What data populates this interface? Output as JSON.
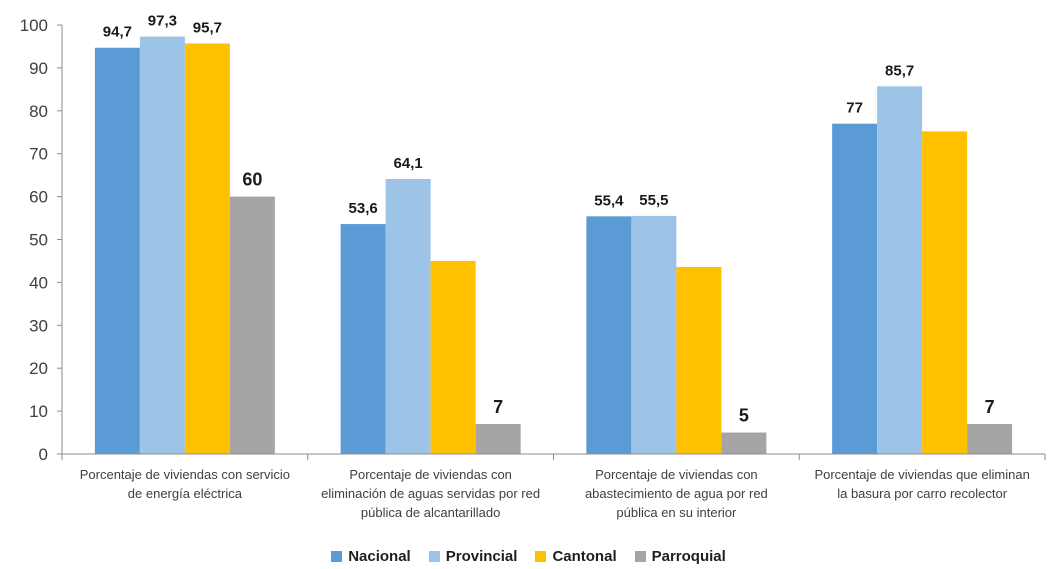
{
  "chart_data": {
    "type": "bar",
    "title": "",
    "xlabel": "",
    "ylabel": "",
    "ylim": [
      0,
      100
    ],
    "yticks": [
      0,
      10,
      20,
      30,
      40,
      50,
      60,
      70,
      80,
      90,
      100
    ],
    "grid": false,
    "legend_position": "bottom",
    "categories": [
      [
        "Porcentaje de viviendas con servicio",
        "de energía eléctrica"
      ],
      [
        "Porcentaje de viviendas con",
        "eliminación de aguas servidas por red",
        "pública de alcantarillado"
      ],
      [
        "Porcentaje de viviendas con",
        "abastecimiento de agua por red",
        "pública en su interior"
      ],
      [
        "Porcentaje de viviendas que eliminan",
        "la basura por carro recolector"
      ]
    ],
    "series": [
      {
        "name": "Nacional",
        "color": "#5B9BD5",
        "values": [
          94.7,
          53.6,
          55.4,
          77
        ],
        "labels": [
          "94,7",
          "53,6",
          "55,4",
          "77"
        ]
      },
      {
        "name": "Provincial",
        "color": "#9DC3E6",
        "values": [
          97.3,
          64.1,
          55.5,
          85.7
        ],
        "labels": [
          "97,3",
          "64,1",
          "55,5",
          "85,7"
        ]
      },
      {
        "name": "Cantonal",
        "color": "#FFC000",
        "values": [
          95.7,
          45,
          43.6,
          75.2
        ],
        "labels": [
          "95,7",
          "",
          "",
          ""
        ]
      },
      {
        "name": "Parroquial",
        "color": "#A5A5A5",
        "values": [
          60,
          7,
          5,
          7
        ],
        "labels": [
          "60",
          "7",
          "5",
          "7"
        ]
      }
    ]
  }
}
